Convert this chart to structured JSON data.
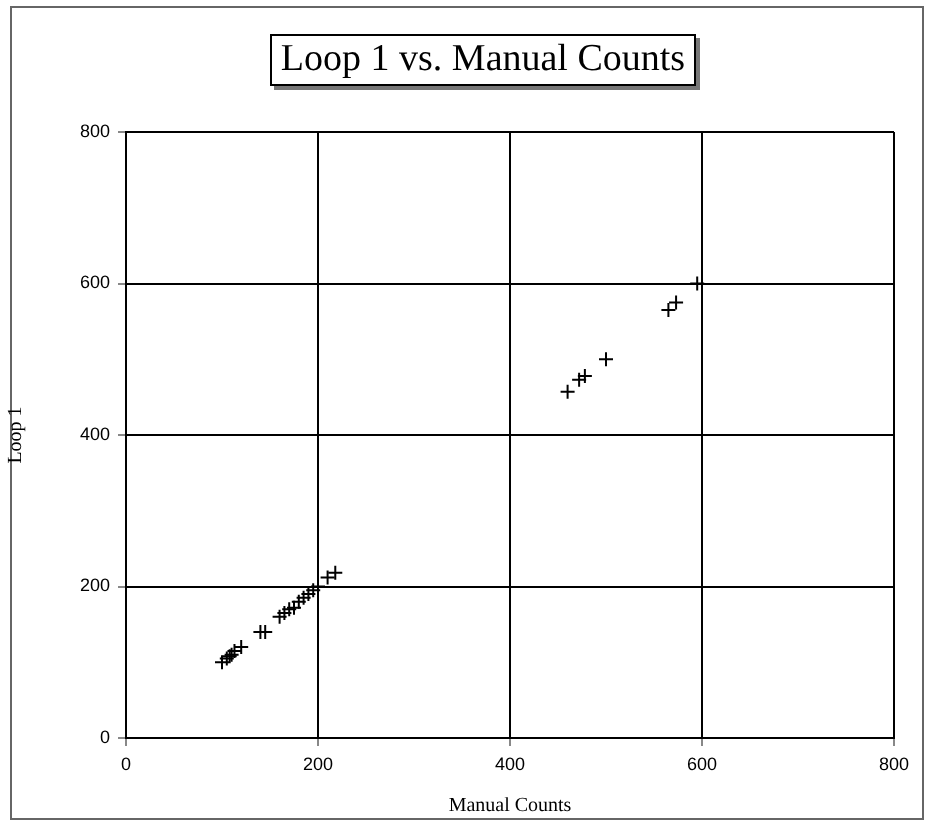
{
  "chart_data": {
    "type": "scatter",
    "title": "Loop 1 vs. Manual Counts",
    "xlabel": "Manual Counts",
    "ylabel": "Loop 1",
    "x": [
      100,
      105,
      108,
      110,
      113,
      120,
      140,
      145,
      160,
      165,
      170,
      175,
      180,
      185,
      190,
      195,
      200,
      210,
      218,
      460,
      472,
      478,
      500,
      565,
      573,
      595
    ],
    "values": [
      100,
      105,
      108,
      110,
      115,
      120,
      140,
      140,
      160,
      165,
      170,
      172,
      180,
      185,
      190,
      195,
      200,
      212,
      218,
      457,
      473,
      478,
      500,
      565,
      575,
      600
    ],
    "color": "#000000",
    "marker": "cross",
    "xlim": [
      0,
      800
    ],
    "xticks": [
      0,
      200,
      400,
      600,
      800
    ],
    "ylim": [
      0,
      800
    ],
    "yticks": [
      0,
      200,
      400,
      600,
      800
    ],
    "grid": true,
    "legend": false
  }
}
